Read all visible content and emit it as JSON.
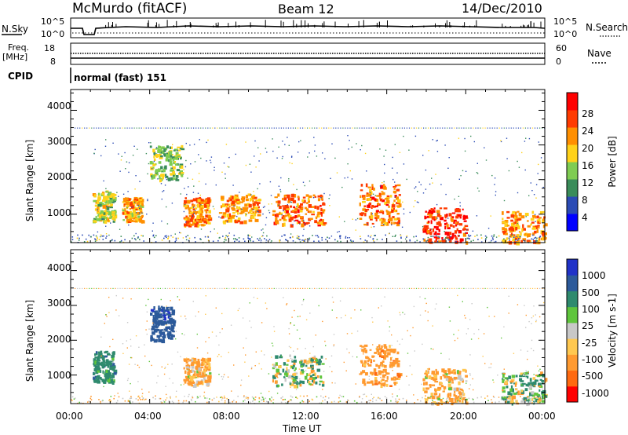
{
  "header": {
    "station": "McMurdo (fitACF)",
    "beam": "Beam 12",
    "date": "14/Dec/2010"
  },
  "noise_panel": {
    "left_label": "N.Sky",
    "right_label": "N.Search",
    "tick_high": "10^5",
    "tick_low": "10^0"
  },
  "freq_panel": {
    "left_label_1": "Freq.",
    "left_label_2": "[MHz]",
    "right_label": "Nave",
    "left_ticks": [
      "18",
      "8"
    ],
    "right_ticks": [
      "60",
      "0"
    ]
  },
  "cpid_panel": {
    "label": "CPID",
    "mode": "normal (fast) 151"
  },
  "power_panel": {
    "ylabel": "Slant Range [km]",
    "yticks": [
      "4000",
      "3000",
      "2000",
      "1000"
    ],
    "colorbar_label": "Power [dB]",
    "colorbar_ticks": [
      "28",
      "24",
      "20",
      "16",
      "12",
      "8",
      "4"
    ],
    "colors": [
      "#0000ff",
      "#2b4bb5",
      "#3a8c5a",
      "#7fcc52",
      "#ffd21a",
      "#ff8f00",
      "#ff3b00",
      "#ff0000"
    ]
  },
  "velocity_panel": {
    "ylabel": "Slant Range [km]",
    "yticks": [
      "4000",
      "3000",
      "2000",
      "1000"
    ],
    "colorbar_label": "Velocity [m s-1]",
    "colorbar_ticks": [
      "1000",
      "500",
      "100",
      "25",
      "-25",
      "-100",
      "-500",
      "-1000"
    ],
    "colors": [
      "#2032c8",
      "#2c5a9a",
      "#2f8a6e",
      "#5fc53c",
      "#c8c8c8",
      "#ffc850",
      "#ff9a30",
      "#ff6a10",
      "#ff0000"
    ]
  },
  "xaxis": {
    "label": "Time UT",
    "ticks": [
      "00:00",
      "04:00",
      "08:00",
      "12:00",
      "16:00",
      "20:00",
      "00:00"
    ]
  },
  "chart_data": [
    {
      "type": "heatmap",
      "title": "",
      "xlabel": "Time UT",
      "ylabel": "Slant Range [km]",
      "x_range_hours": [
        0,
        24
      ],
      "ylim": [
        180,
        4600
      ],
      "colorbar": "Power [dB]",
      "clim": [
        0,
        32
      ],
      "echo_regions": [
        {
          "t_start": 1.1,
          "t_end": 2.2,
          "r_start": 800,
          "r_end": 1700,
          "value": 16
        },
        {
          "t_start": 2.6,
          "t_end": 3.6,
          "r_start": 800,
          "r_end": 1500,
          "value": 20
        },
        {
          "t_start": 4.0,
          "t_end": 5.6,
          "r_start": 2000,
          "r_end": 3000,
          "value": 14
        },
        {
          "t_start": 5.7,
          "t_end": 7.0,
          "r_start": 700,
          "r_end": 1500,
          "value": 22
        },
        {
          "t_start": 7.5,
          "t_end": 9.5,
          "r_start": 800,
          "r_end": 1600,
          "value": 22
        },
        {
          "t_start": 10.2,
          "t_end": 12.8,
          "r_start": 700,
          "r_end": 1600,
          "value": 24
        },
        {
          "t_start": 14.6,
          "t_end": 16.6,
          "r_start": 700,
          "r_end": 1900,
          "value": 24
        },
        {
          "t_start": 17.8,
          "t_end": 20.0,
          "r_start": 200,
          "r_end": 1200,
          "value": 28
        },
        {
          "t_start": 21.8,
          "t_end": 24.0,
          "r_start": 200,
          "r_end": 1100,
          "value": 22
        }
      ]
    },
    {
      "type": "heatmap",
      "title": "",
      "xlabel": "Time UT",
      "ylabel": "Slant Range [km]",
      "x_range_hours": [
        0,
        24
      ],
      "ylim": [
        180,
        4600
      ],
      "colorbar": "Velocity [m s-1]",
      "clim": [
        -1000,
        1000
      ],
      "echo_regions": [
        {
          "t_start": 1.1,
          "t_end": 2.2,
          "r_start": 800,
          "r_end": 1700,
          "value": 300
        },
        {
          "t_start": 4.0,
          "t_end": 5.2,
          "r_start": 2000,
          "r_end": 3000,
          "value": 800
        },
        {
          "t_start": 5.7,
          "t_end": 7.0,
          "r_start": 700,
          "r_end": 1500,
          "value": -200
        },
        {
          "t_start": 10.2,
          "t_end": 12.8,
          "r_start": 700,
          "r_end": 1600,
          "value": 60
        },
        {
          "t_start": 14.6,
          "t_end": 16.6,
          "r_start": 700,
          "r_end": 1900,
          "value": -300
        },
        {
          "t_start": 17.8,
          "t_end": 20.0,
          "r_start": 200,
          "r_end": 1200,
          "value": -200
        },
        {
          "t_start": 21.8,
          "t_end": 24.0,
          "r_start": 200,
          "r_end": 1100,
          "value": 80
        }
      ]
    }
  ]
}
